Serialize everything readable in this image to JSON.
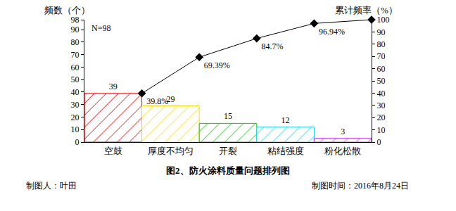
{
  "chart_data": {
    "type": "pareto",
    "title": "图2、防火涂料质量问题排列图",
    "ylabel": "频数（个）",
    "y2label": "累计频率（%）",
    "annotations": [
      "N=98"
    ],
    "footnotes": [
      "制图人：叶田",
      "制图时间：2016年8月24日"
    ],
    "categories": [
      "空鼓",
      "厚度不均匀",
      "开裂",
      "粘结强度",
      "粉化松散"
    ],
    "series": [
      {
        "type": "bar",
        "values": [
          39,
          29,
          15,
          12,
          3
        ],
        "colors": [
          "#ff0000",
          "#f0e000",
          "#00cc00",
          "#00d8f0",
          "#cc33ff"
        ],
        "marker": "hatch",
        "data_labels": true
      },
      {
        "type": "line",
        "axis": "y2",
        "color": "#000000",
        "marker": "diamond",
        "values": [
          39.8,
          69.39,
          84.7,
          96.94,
          100
        ],
        "value_labels": [
          "39.8%",
          "69.39%",
          "84.7%",
          "96.94%",
          null
        ],
        "data_labels": true
      }
    ],
    "ylim": [
      0,
      98
    ],
    "yticks": [
      0,
      10,
      20,
      30,
      40,
      50,
      60,
      70,
      80,
      90,
      98
    ],
    "y2lim": [
      0,
      100
    ],
    "y2ticks": [
      0,
      10,
      20,
      30,
      40,
      50,
      60,
      70,
      80,
      90,
      100
    ],
    "grid": false,
    "legend": false
  }
}
